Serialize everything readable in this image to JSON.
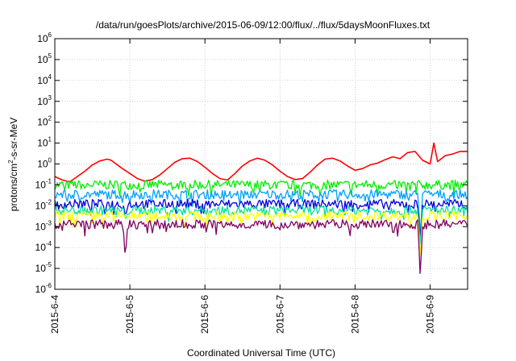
{
  "chart_data": {
    "type": "line",
    "title": "/data/run/goesPlots/archive/2015-06-09/12:00/flux/../flux/5daysMoonFluxes.txt",
    "xlabel": "Coordinated Universal Time (UTC)",
    "ylabel": {
      "base": "protons/cm",
      "sup": "2",
      "rest": "-s-sr-MeV"
    },
    "x_ticks": [
      "2015-6-4",
      "2015-6-5",
      "2015-6-6",
      "2015-6-7",
      "2015-6-8",
      "2015-6-9"
    ],
    "x_range": [
      "2015-06-04T00:00",
      "2015-06-09T12:00"
    ],
    "y_scale": "log",
    "y_ticks": [
      {
        "base": "10",
        "exp": "-6"
      },
      {
        "base": "10",
        "exp": "-5"
      },
      {
        "base": "10",
        "exp": "-4"
      },
      {
        "base": "10",
        "exp": "-3"
      },
      {
        "base": "10",
        "exp": "-2"
      },
      {
        "base": "10",
        "exp": "-1"
      },
      {
        "base": "10",
        "exp": "0"
      },
      {
        "base": "10",
        "exp": "1"
      },
      {
        "base": "10",
        "exp": "2"
      },
      {
        "base": "10",
        "exp": "3"
      },
      {
        "base": "10",
        "exp": "4"
      },
      {
        "base": "10",
        "exp": "5"
      },
      {
        "base": "10",
        "exp": "6"
      }
    ],
    "ylim": [
      1e-06,
      1000000.0
    ],
    "grid": true,
    "series": [
      {
        "color": "#ff0000",
        "x": [
          0,
          0.1,
          0.2,
          0.3,
          0.4,
          0.5,
          0.6,
          0.7,
          0.75,
          0.8,
          0.9,
          1.0,
          1.1,
          1.2,
          1.3,
          1.4,
          1.5,
          1.6,
          1.7,
          1.8,
          1.9,
          2.0,
          2.1,
          2.2,
          2.3,
          2.4,
          2.5,
          2.6,
          2.7,
          2.8,
          2.9,
          3.0,
          3.1,
          3.2,
          3.3,
          3.4,
          3.5,
          3.6,
          3.7,
          3.8,
          3.9,
          4.0,
          4.1,
          4.2,
          4.3,
          4.4,
          4.5,
          4.6,
          4.7,
          4.8,
          4.9,
          5.0,
          5.05,
          5.1,
          5.2,
          5.3,
          5.4,
          5.5
        ],
        "y": [
          0.25,
          0.17,
          0.14,
          0.25,
          0.45,
          0.9,
          1.4,
          1.7,
          1.5,
          1.1,
          0.6,
          0.35,
          0.2,
          0.15,
          0.18,
          0.3,
          0.6,
          1.2,
          1.8,
          1.9,
          1.3,
          0.7,
          0.35,
          0.2,
          0.17,
          0.35,
          0.8,
          1.4,
          1.9,
          1.5,
          0.9,
          0.45,
          0.25,
          0.18,
          0.2,
          0.4,
          0.9,
          1.7,
          1.9,
          1.4,
          0.8,
          0.5,
          0.6,
          0.9,
          1.1,
          1.6,
          2.2,
          1.8,
          3.5,
          4.0,
          1.5,
          1.0,
          10.0,
          1.3,
          2.5,
          3.0,
          4.0,
          4.0
        ]
      },
      {
        "color": "#00ee00",
        "base": 0.1,
        "dips": []
      },
      {
        "color": "#00a0ff",
        "base": 0.035,
        "dips": [
          {
            "x": 4.87,
            "y": 0.0003
          }
        ]
      },
      {
        "color": "#0000e0",
        "base": 0.012,
        "dips": [
          {
            "x": 0.94,
            "y": 0.003
          },
          {
            "x": 4.87,
            "y": 0.0002
          }
        ]
      },
      {
        "color": "#00e0a0",
        "base": 0.006,
        "dips": [
          {
            "x": 0.94,
            "y": 0.002
          },
          {
            "x": 4.87,
            "y": 0.0001
          }
        ]
      },
      {
        "color": "#ffff00",
        "base": 0.0033,
        "dips": [
          {
            "x": 4.87,
            "y": 3e-05
          }
        ]
      },
      {
        "color": "#800060",
        "base": 0.0013,
        "dips": [
          {
            "x": 0.94,
            "y": 2.5e-05
          },
          {
            "x": 1.3,
            "y": 0.0005
          },
          {
            "x": 4.87,
            "y": 2.8e-06
          }
        ]
      }
    ]
  }
}
